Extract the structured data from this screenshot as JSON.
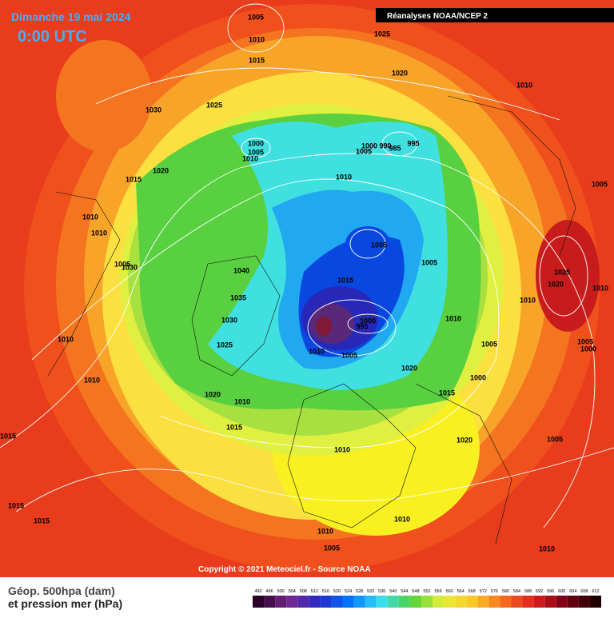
{
  "header": {
    "date": "Dimanche 19 mai 2024",
    "time": "0:00 UTC",
    "source": "Réanalyses NOAA/NCEP 2"
  },
  "isobar_labels": [
    1005,
    1010,
    1015,
    1025,
    1020,
    1010,
    1030,
    1025,
    1000,
    1005,
    1010,
    1005,
    1000,
    990,
    985,
    995,
    1020,
    1015,
    1010,
    1005,
    1010,
    1010,
    1005,
    1005,
    1005,
    1030,
    1040,
    1025,
    1020,
    1010,
    1015,
    1035,
    1010,
    1030,
    1010,
    1000,
    995,
    1010,
    1025,
    1005,
    1005,
    1000,
    1010,
    1005,
    1020,
    1000,
    1010,
    1015,
    1020,
    1010,
    1015,
    1015,
    1020,
    1005,
    1010,
    1015,
    1015,
    1010,
    1010,
    1005,
    1010
  ],
  "footer": {
    "copyright": "Copyright © 2021 Meteociel.fr - Source NOAA",
    "legend": [
      "Géop. 500hpa (dam)",
      "et pression mer (hPa)"
    ]
  },
  "colorbar": {
    "ticks": [
      492,
      496,
      500,
      504,
      508,
      512,
      516,
      520,
      524,
      528,
      532,
      536,
      540,
      544,
      548,
      552,
      556,
      560,
      564,
      568,
      572,
      576,
      580,
      584,
      588,
      592,
      596,
      600,
      604,
      608,
      612
    ]
  }
}
